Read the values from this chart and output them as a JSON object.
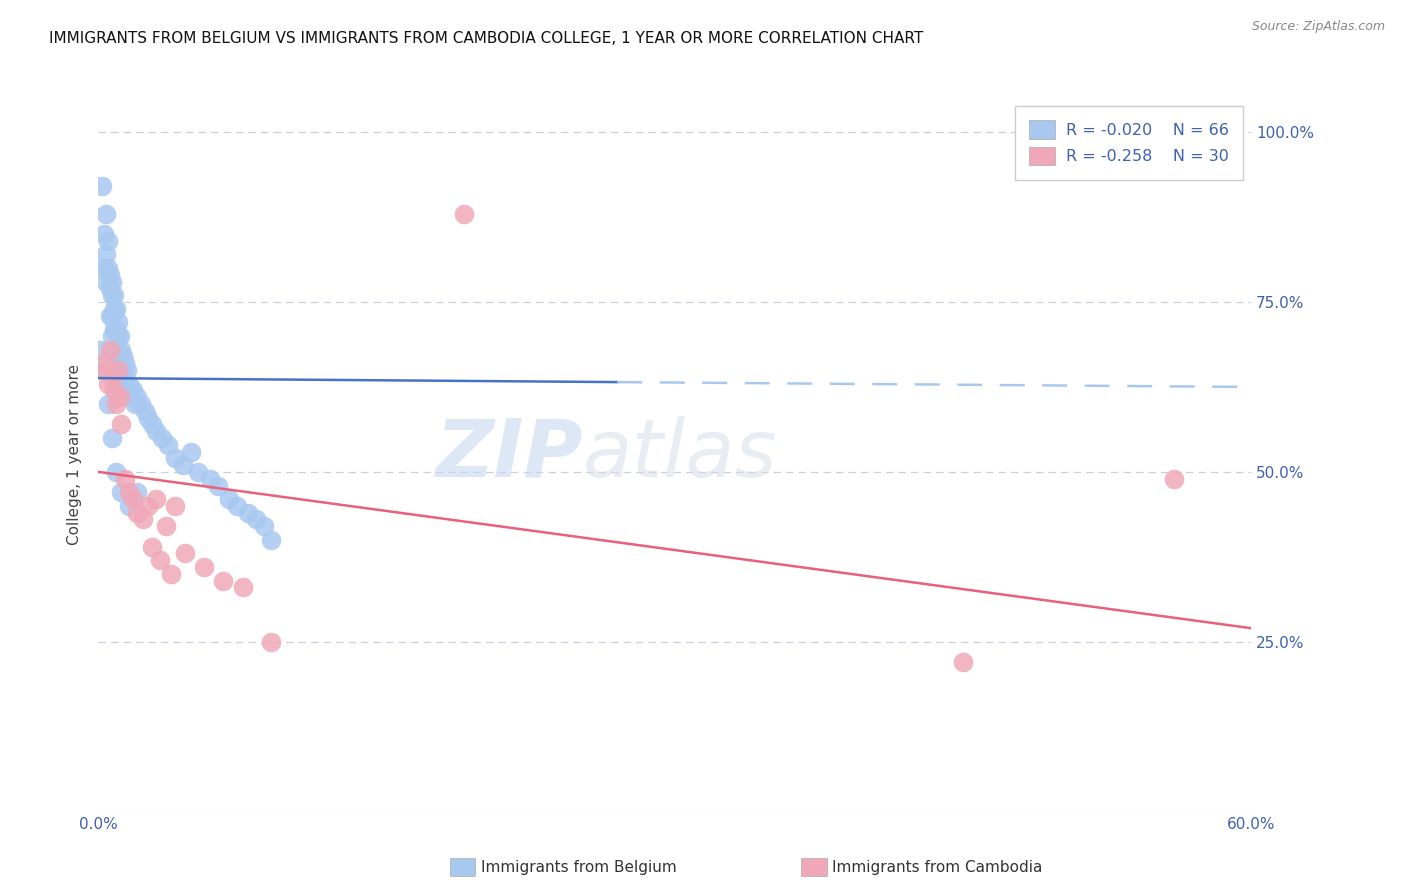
{
  "title": "IMMIGRANTS FROM BELGIUM VS IMMIGRANTS FROM CAMBODIA COLLEGE, 1 YEAR OR MORE CORRELATION CHART",
  "source": "Source: ZipAtlas.com",
  "ylabel": "College, 1 year or more",
  "x_min": 0.0,
  "x_max": 0.6,
  "y_min": 0.0,
  "y_max": 1.05,
  "y_ticks": [
    0.0,
    0.25,
    0.5,
    0.75,
    1.0
  ],
  "legend_belgium": "Immigrants from Belgium",
  "legend_cambodia": "Immigrants from Cambodia",
  "R_belgium": -0.02,
  "N_belgium": 66,
  "R_cambodia": -0.258,
  "N_cambodia": 30,
  "color_belgium": "#a8c8f0",
  "color_cambodia": "#f0a8b8",
  "color_line_belgium_solid": "#4472c4",
  "color_line_belgium_dashed": "#a8c8f0",
  "color_line_cambodia": "#e8607a",
  "color_tick_labels": "#4060b0",
  "color_grid": "#c8d0e0",
  "background_color": "#ffffff",
  "bel_trend_x0": 0.0,
  "bel_trend_x_solid_end": 0.27,
  "bel_trend_x1": 0.6,
  "bel_trend_y0": 0.638,
  "bel_trend_y1": 0.625,
  "cam_trend_x0": 0.0,
  "cam_trend_x1": 0.6,
  "cam_trend_y0": 0.5,
  "cam_trend_y1": 0.27,
  "belgium_x": [
    0.001,
    0.002,
    0.003,
    0.003,
    0.004,
    0.004,
    0.004,
    0.005,
    0.005,
    0.006,
    0.006,
    0.006,
    0.007,
    0.007,
    0.007,
    0.007,
    0.008,
    0.008,
    0.008,
    0.009,
    0.009,
    0.009,
    0.01,
    0.01,
    0.01,
    0.011,
    0.011,
    0.012,
    0.012,
    0.013,
    0.013,
    0.014,
    0.014,
    0.015,
    0.015,
    0.016,
    0.017,
    0.018,
    0.019,
    0.02,
    0.022,
    0.024,
    0.026,
    0.028,
    0.03,
    0.033,
    0.036,
    0.04,
    0.044,
    0.048,
    0.052,
    0.058,
    0.062,
    0.068,
    0.072,
    0.078,
    0.082,
    0.086,
    0.09,
    0.003,
    0.005,
    0.007,
    0.009,
    0.012,
    0.016,
    0.02
  ],
  "belgium_y": [
    0.68,
    0.92,
    0.85,
    0.8,
    0.88,
    0.82,
    0.78,
    0.84,
    0.8,
    0.79,
    0.77,
    0.73,
    0.78,
    0.76,
    0.73,
    0.7,
    0.76,
    0.74,
    0.71,
    0.74,
    0.71,
    0.68,
    0.72,
    0.7,
    0.67,
    0.7,
    0.67,
    0.68,
    0.65,
    0.67,
    0.64,
    0.66,
    0.63,
    0.65,
    0.62,
    0.63,
    0.61,
    0.62,
    0.6,
    0.61,
    0.6,
    0.59,
    0.58,
    0.57,
    0.56,
    0.55,
    0.54,
    0.52,
    0.51,
    0.53,
    0.5,
    0.49,
    0.48,
    0.46,
    0.45,
    0.44,
    0.43,
    0.42,
    0.4,
    0.65,
    0.6,
    0.55,
    0.5,
    0.47,
    0.45,
    0.47
  ],
  "cambodia_x": [
    0.003,
    0.004,
    0.005,
    0.006,
    0.007,
    0.008,
    0.009,
    0.01,
    0.011,
    0.012,
    0.014,
    0.016,
    0.018,
    0.02,
    0.023,
    0.026,
    0.03,
    0.035,
    0.04,
    0.19,
    0.028,
    0.032,
    0.038,
    0.045,
    0.055,
    0.065,
    0.075,
    0.09,
    0.45,
    0.56
  ],
  "cambodia_y": [
    0.66,
    0.65,
    0.63,
    0.68,
    0.64,
    0.62,
    0.6,
    0.65,
    0.61,
    0.57,
    0.49,
    0.47,
    0.46,
    0.44,
    0.43,
    0.45,
    0.46,
    0.42,
    0.45,
    0.88,
    0.39,
    0.37,
    0.35,
    0.38,
    0.36,
    0.34,
    0.33,
    0.25,
    0.22,
    0.49
  ]
}
